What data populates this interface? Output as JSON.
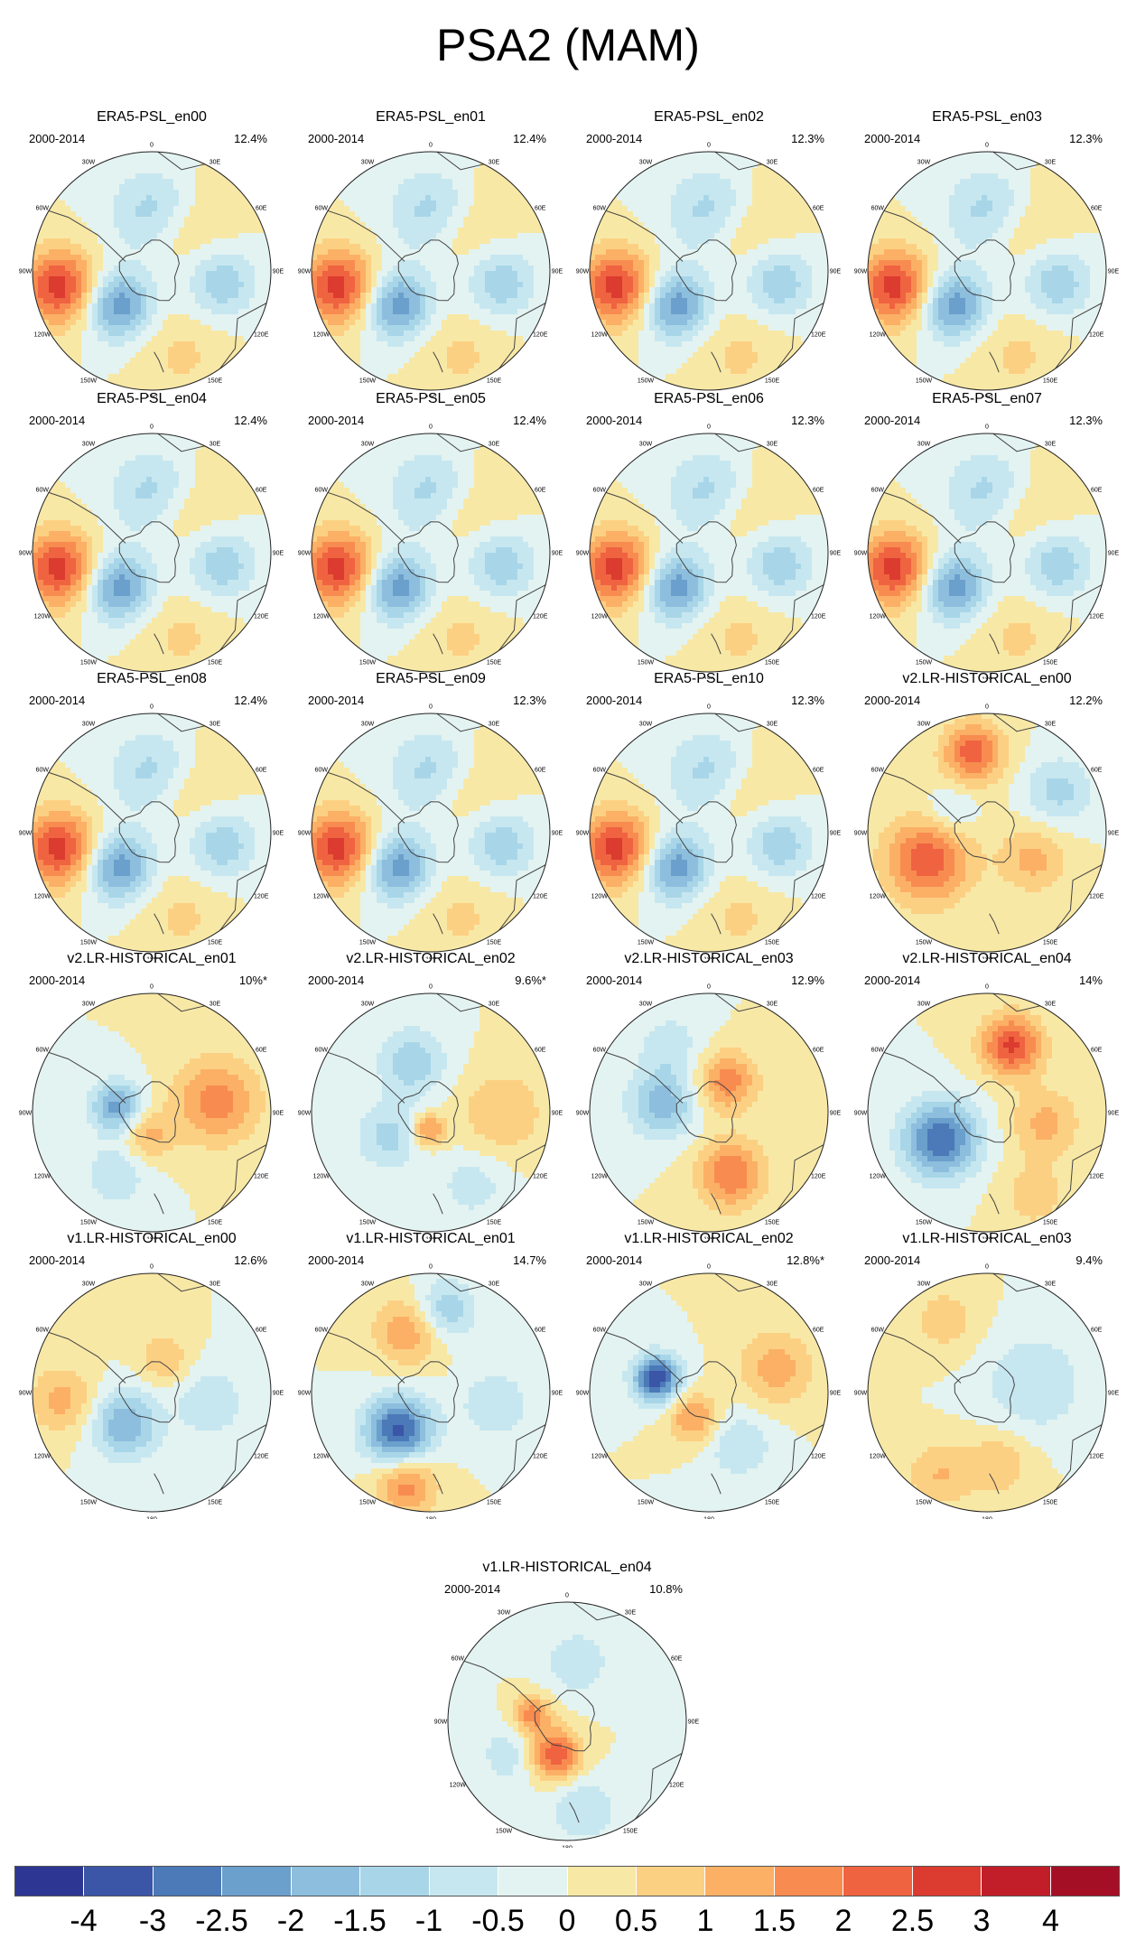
{
  "title": "PSA2 (MAM)",
  "chart_data": {
    "type": "heatmap",
    "title": "PSA2 (MAM)",
    "projection": "south-polar-stereographic",
    "longitude_labels": [
      "0",
      "30E",
      "60E",
      "90E",
      "120E",
      "150E",
      "180",
      "150W",
      "120W",
      "90W",
      "60W",
      "30W"
    ],
    "colorbar": {
      "ticks": [
        "-4",
        "-3",
        "-2.5",
        "-2",
        "-1.5",
        "-1",
        "-0.5",
        "0",
        "0.5",
        "1",
        "1.5",
        "2",
        "2.5",
        "3",
        "4"
      ],
      "levels": [
        -4,
        -3,
        -2.5,
        -2,
        -1.5,
        -1,
        -0.5,
        0,
        0.5,
        1,
        1.5,
        2,
        2.5,
        3,
        4
      ],
      "colors": [
        "#2d3793",
        "#3b55a7",
        "#4c79b8",
        "#6b9fcc",
        "#8dbedd",
        "#a8d6e8",
        "#c7e7f0",
        "#e3f3f1",
        "#f8e8a6",
        "#fcd083",
        "#fbb066",
        "#f88c50",
        "#ef6341",
        "#dc3b2f",
        "#c11e2a",
        "#a50f26"
      ]
    },
    "panels": [
      {
        "name": "ERA5-PSL_en00",
        "period": "2000-2014",
        "percent": "12.4%",
        "pattern": "era5"
      },
      {
        "name": "ERA5-PSL_en01",
        "period": "2000-2014",
        "percent": "12.4%",
        "pattern": "era5"
      },
      {
        "name": "ERA5-PSL_en02",
        "period": "2000-2014",
        "percent": "12.3%",
        "pattern": "era5"
      },
      {
        "name": "ERA5-PSL_en03",
        "period": "2000-2014",
        "percent": "12.3%",
        "pattern": "era5"
      },
      {
        "name": "ERA5-PSL_en04",
        "period": "2000-2014",
        "percent": "12.4%",
        "pattern": "era5"
      },
      {
        "name": "ERA5-PSL_en05",
        "period": "2000-2014",
        "percent": "12.4%",
        "pattern": "era5"
      },
      {
        "name": "ERA5-PSL_en06",
        "period": "2000-2014",
        "percent": "12.3%",
        "pattern": "era5"
      },
      {
        "name": "ERA5-PSL_en07",
        "period": "2000-2014",
        "percent": "12.3%",
        "pattern": "era5"
      },
      {
        "name": "ERA5-PSL_en08",
        "period": "2000-2014",
        "percent": "12.4%",
        "pattern": "era5"
      },
      {
        "name": "ERA5-PSL_en09",
        "period": "2000-2014",
        "percent": "12.3%",
        "pattern": "era5"
      },
      {
        "name": "ERA5-PSL_en10",
        "period": "2000-2014",
        "percent": "12.3%",
        "pattern": "era5"
      },
      {
        "name": "v2.LR-HISTORICAL_en00",
        "period": "2000-2014",
        "percent": "12.2%",
        "pattern": "v2_00"
      },
      {
        "name": "v2.LR-HISTORICAL_en01",
        "period": "2000-2014",
        "percent": "10%*",
        "pattern": "v2_01"
      },
      {
        "name": "v2.LR-HISTORICAL_en02",
        "period": "2000-2014",
        "percent": "9.6%*",
        "pattern": "v2_02"
      },
      {
        "name": "v2.LR-HISTORICAL_en03",
        "period": "2000-2014",
        "percent": "12.9%",
        "pattern": "v2_03"
      },
      {
        "name": "v2.LR-HISTORICAL_en04",
        "period": "2000-2014",
        "percent": "14%",
        "pattern": "v2_04"
      },
      {
        "name": "v1.LR-HISTORICAL_en00",
        "period": "2000-2014",
        "percent": "12.6%",
        "pattern": "v1_00"
      },
      {
        "name": "v1.LR-HISTORICAL_en01",
        "period": "2000-2014",
        "percent": "14.7%",
        "pattern": "v1_01"
      },
      {
        "name": "v1.LR-HISTORICAL_en02",
        "period": "2000-2014",
        "percent": "12.8%*",
        "pattern": "v1_02"
      },
      {
        "name": "v1.LR-HISTORICAL_en03",
        "period": "2000-2014",
        "percent": "9.4%",
        "pattern": "v1_03"
      },
      {
        "name": "v1.LR-HISTORICAL_en04",
        "period": "2000-2014",
        "percent": "10.8%",
        "pattern": "v1_04"
      }
    ],
    "patterns": {
      "era5": [
        {
          "lon": -100,
          "r": 0.78,
          "amp": 2.8,
          "s": 0.22
        },
        {
          "lon": -135,
          "r": 0.4,
          "amp": -2.4,
          "s": 0.2
        },
        {
          "lon": 100,
          "r": 0.6,
          "amp": -1.4,
          "s": 0.2
        },
        {
          "lon": 0,
          "r": 0.5,
          "amp": -1.2,
          "s": 0.25
        },
        {
          "lon": 40,
          "r": 0.4,
          "amp": 0.6,
          "s": 0.2
        },
        {
          "lon": 160,
          "r": 0.75,
          "amp": 0.6,
          "s": 0.25
        },
        {
          "lon": 45,
          "r": 0.85,
          "amp": 0.5,
          "s": 0.2
        }
      ],
      "v2_00": [
        {
          "lon": -115,
          "r": 0.55,
          "amp": 2.4,
          "s": 0.25
        },
        {
          "lon": -10,
          "r": 0.68,
          "amp": 2.3,
          "s": 0.18
        },
        {
          "lon": 60,
          "r": 0.7,
          "amp": -1.2,
          "s": 0.2
        },
        {
          "lon": 120,
          "r": 0.45,
          "amp": 1.2,
          "s": 0.2
        },
        {
          "lon": -60,
          "r": 0.35,
          "amp": -0.8,
          "s": 0.15
        }
      ],
      "v2_01": [
        {
          "lon": -80,
          "r": 0.3,
          "amp": -2.2,
          "s": 0.15
        },
        {
          "lon": 80,
          "r": 0.55,
          "amp": 1.8,
          "s": 0.25
        },
        {
          "lon": -170,
          "r": 0.2,
          "amp": 1.2,
          "s": 0.15
        },
        {
          "lon": -150,
          "r": 0.6,
          "amp": -0.9,
          "s": 0.2
        }
      ],
      "v2_02": [
        {
          "lon": -20,
          "r": 0.45,
          "amp": -1.4,
          "s": 0.2
        },
        {
          "lon": -120,
          "r": 0.4,
          "amp": -1.2,
          "s": 0.2
        },
        {
          "lon": 90,
          "r": 0.6,
          "amp": 1.0,
          "s": 0.25
        },
        {
          "lon": -170,
          "r": 0.15,
          "amp": 1.8,
          "s": 0.1
        },
        {
          "lon": 150,
          "r": 0.7,
          "amp": -0.8,
          "s": 0.2
        }
      ],
      "v2_03": [
        {
          "lon": 160,
          "r": 0.55,
          "amp": 2.0,
          "s": 0.2
        },
        {
          "lon": -80,
          "r": 0.4,
          "amp": -1.8,
          "s": 0.2
        },
        {
          "lon": 30,
          "r": 0.3,
          "amp": 1.8,
          "s": 0.18
        },
        {
          "lon": -30,
          "r": 0.65,
          "amp": -0.8,
          "s": 0.2
        }
      ],
      "v2_04": [
        {
          "lon": -120,
          "r": 0.45,
          "amp": -3.0,
          "s": 0.22
        },
        {
          "lon": 20,
          "r": 0.6,
          "amp": 2.6,
          "s": 0.18
        },
        {
          "lon": 100,
          "r": 0.5,
          "amp": 1.2,
          "s": 0.2
        },
        {
          "lon": 150,
          "r": 0.8,
          "amp": 0.8,
          "s": 0.2
        }
      ],
      "v1_00": [
        {
          "lon": -140,
          "r": 0.35,
          "amp": -2.0,
          "s": 0.2
        },
        {
          "lon": -95,
          "r": 0.75,
          "amp": 1.2,
          "s": 0.2
        },
        {
          "lon": 100,
          "r": 0.5,
          "amp": -1.0,
          "s": 0.2
        },
        {
          "lon": 20,
          "r": 0.3,
          "amp": 1.0,
          "s": 0.15
        }
      ],
      "v1_01": [
        {
          "lon": -140,
          "r": 0.42,
          "amp": -3.2,
          "s": 0.2
        },
        {
          "lon": -20,
          "r": 0.55,
          "amp": 1.5,
          "s": 0.2
        },
        {
          "lon": 10,
          "r": 0.7,
          "amp": -1.5,
          "s": 0.18
        },
        {
          "lon": 100,
          "r": 0.55,
          "amp": -1.0,
          "s": 0.2
        },
        {
          "lon": -165,
          "r": 0.8,
          "amp": 1.8,
          "s": 0.18
        }
      ],
      "v1_02": [
        {
          "lon": -75,
          "r": 0.45,
          "amp": -3.4,
          "s": 0.14
        },
        {
          "lon": 70,
          "r": 0.6,
          "amp": 1.3,
          "s": 0.22
        },
        {
          "lon": -150,
          "r": 0.25,
          "amp": 1.6,
          "s": 0.15
        },
        {
          "lon": 150,
          "r": 0.5,
          "amp": -1.0,
          "s": 0.2
        }
      ],
      "v1_03": [
        {
          "lon": 80,
          "r": 0.4,
          "amp": -1.0,
          "s": 0.3
        },
        {
          "lon": -150,
          "r": 0.8,
          "amp": 1.0,
          "s": 0.2
        },
        {
          "lon": -30,
          "r": 0.7,
          "amp": 0.8,
          "s": 0.2
        },
        {
          "lon": 170,
          "r": 0.6,
          "amp": 0.9,
          "s": 0.2
        }
      ],
      "v1_04": [
        {
          "lon": -160,
          "r": 0.3,
          "amp": 2.6,
          "s": 0.15
        },
        {
          "lon": -80,
          "r": 0.3,
          "amp": 1.8,
          "s": 0.12
        },
        {
          "lon": 10,
          "r": 0.5,
          "amp": -0.9,
          "s": 0.2
        },
        {
          "lon": -120,
          "r": 0.55,
          "amp": -0.8,
          "s": 0.2
        },
        {
          "lon": 170,
          "r": 0.75,
          "amp": -1.0,
          "s": 0.2
        }
      ]
    }
  }
}
